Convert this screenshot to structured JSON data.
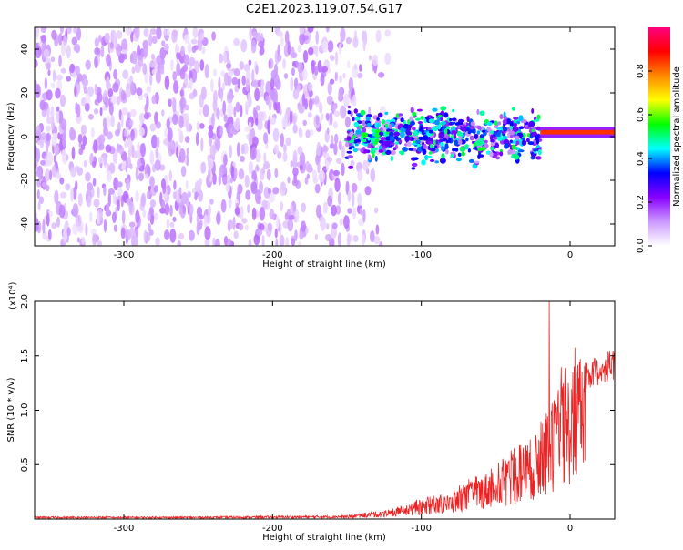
{
  "title": "C2E1.2023.119.07.54.G17",
  "chart_data": [
    {
      "type": "heatmap",
      "xlabel": "Height of straight line (km)",
      "ylabel": "Frequency (Hz)",
      "xlim": [
        -360,
        30
      ],
      "ylim": [
        -50,
        50
      ],
      "xticks": [
        -300,
        -200,
        -100,
        0
      ],
      "yticks": [
        -40,
        -20,
        0,
        20,
        40
      ],
      "colorbar": {
        "label": "Normalized spectral amplitude",
        "range": [
          0.0,
          1.0
        ],
        "ticks": [
          "0.0",
          "0.2",
          "0.4",
          "0.6",
          "0.8"
        ],
        "colors": [
          "#ffffff",
          "#cc99ff",
          "#8800ff",
          "#0000ff",
          "#00ffff",
          "#00ff00",
          "#ffff00",
          "#ff8800",
          "#ff0000",
          "#ff0080"
        ]
      },
      "features": [
        {
          "name": "noise",
          "x_range": [
            -360,
            -140
          ],
          "freq_range": [
            -50,
            50
          ],
          "amplitude": 0.1
        },
        {
          "name": "signal-band",
          "x_range": [
            -150,
            -20
          ],
          "center_freq": 0,
          "half_width": 8,
          "amplitude": 0.45
        },
        {
          "name": "carrier-line",
          "x_range": [
            -20,
            30
          ],
          "center_freq": 2,
          "amplitude": 0.85
        }
      ]
    },
    {
      "type": "line",
      "xlabel": "Height of straight line (km)",
      "ylabel": "SNR (10 * v/v)",
      "multiplier": "(x10⁴)",
      "xlim": [
        -360,
        30
      ],
      "ylim": [
        0,
        2.0
      ],
      "xticks": [
        -300,
        -200,
        -100,
        0
      ],
      "yticks": [
        0.5,
        1.0,
        1.5,
        2.0
      ],
      "ytick_labels": [
        "0.5",
        "1.0",
        "1.5",
        "2.0"
      ],
      "color": "#ee2222",
      "envelope": [
        {
          "x": -360,
          "y": 0.02
        },
        {
          "x": -250,
          "y": 0.02
        },
        {
          "x": -150,
          "y": 0.03
        },
        {
          "x": -120,
          "y": 0.07
        },
        {
          "x": -100,
          "y": 0.15
        },
        {
          "x": -80,
          "y": 0.2
        },
        {
          "x": -60,
          "y": 0.35
        },
        {
          "x": -40,
          "y": 0.5
        },
        {
          "x": -30,
          "y": 0.62
        },
        {
          "x": -20,
          "y": 0.7
        },
        {
          "x": -10,
          "y": 1.0
        },
        {
          "x": 0,
          "y": 1.2
        },
        {
          "x": 10,
          "y": 1.38
        },
        {
          "x": 20,
          "y": 1.45
        },
        {
          "x": 30,
          "y": 1.5
        }
      ],
      "spike": {
        "x": -14,
        "y": 2.0
      }
    }
  ]
}
